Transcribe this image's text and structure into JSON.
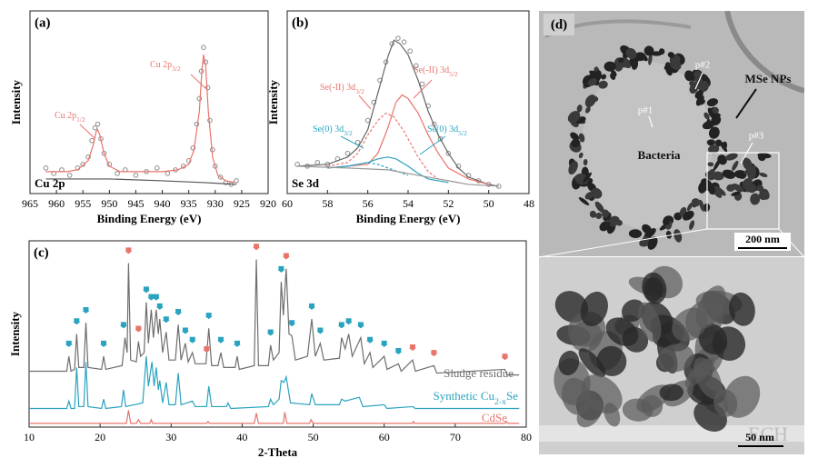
{
  "chart_data": [
    {
      "type": "line",
      "panel_label": "(a)",
      "corner_label": "Cu 2p",
      "xlabel": "Binding Energy (eV)",
      "ylabel": "Intensity",
      "xlim": [
        965,
        920
      ],
      "xticks": [
        965,
        960,
        955,
        950,
        945,
        940,
        935,
        930,
        925,
        920
      ],
      "ylim": [
        0,
        100
      ],
      "series": [
        {
          "style": "scatter",
          "color": "#8c8c8c",
          "x": [
            962,
            960.5,
            959,
            957.5,
            956,
            955,
            954,
            953.3,
            952.7,
            952.2,
            951.6,
            951,
            950,
            948.5,
            947,
            945,
            943,
            941,
            939,
            937.5,
            936,
            935,
            934.2,
            933.5,
            933,
            932.6,
            932.2,
            931.8,
            931.4,
            931,
            930.5,
            930,
            929,
            928,
            927,
            926
          ],
          "values": [
            14,
            11,
            13,
            10,
            14,
            16,
            20,
            29,
            36,
            38,
            30,
            22,
            16,
            11,
            13,
            10,
            12,
            14,
            11,
            13,
            15,
            18,
            25,
            38,
            52,
            67,
            80,
            72,
            58,
            40,
            24,
            15,
            9,
            6,
            5,
            7
          ]
        },
        {
          "style": "line",
          "color": "#e8746c",
          "x": [
            962,
            958,
            956,
            954,
            953,
            952.5,
            952.2,
            951.8,
            951,
            950,
            948,
            944,
            940,
            937,
            935,
            934,
            933,
            932.5,
            932.2,
            931.8,
            931.3,
            930.5,
            929.5,
            928,
            926
          ],
          "values": [
            12,
            12,
            13,
            18,
            27,
            34,
            35,
            32,
            22,
            15,
            12,
            12,
            12,
            13,
            16,
            24,
            45,
            68,
            76,
            70,
            45,
            20,
            10,
            7,
            6
          ]
        },
        {
          "style": "line",
          "color": "#555555",
          "x": [
            962,
            950,
            940,
            932,
            926
          ],
          "values": [
            8,
            8,
            7,
            6,
            5
          ]
        }
      ],
      "annotations": [
        {
          "parts": [
            "Cu 2p",
            "1/2"
          ],
          "color": "#e8746c"
        },
        {
          "parts": [
            "Cu 2p",
            "3/2"
          ],
          "color": "#e8746c"
        }
      ]
    },
    {
      "type": "line",
      "panel_label": "(b)",
      "corner_label": "Se 3d",
      "xlabel": "Binding Energy (eV)",
      "ylabel": "Intensity",
      "xlim": [
        60,
        48
      ],
      "xticks": [
        60,
        58,
        56,
        54,
        52,
        50,
        48
      ],
      "ylim": [
        0,
        100
      ],
      "series": [
        {
          "style": "scatter",
          "color": "#8c8c8c",
          "x": [
            59.5,
            59,
            58.5,
            58,
            57.5,
            57,
            56.5,
            56,
            55.7,
            55.4,
            55.1,
            54.8,
            54.5,
            54.2,
            53.9,
            53.6,
            53.3,
            53,
            52.7,
            52.4,
            52,
            51.5,
            51,
            50.5,
            50,
            49.5
          ],
          "values": [
            16,
            15,
            17,
            16,
            19,
            22,
            28,
            40,
            50,
            62,
            72,
            82,
            85,
            83,
            78,
            70,
            60,
            48,
            38,
            30,
            22,
            15,
            10,
            7,
            5,
            4
          ]
        },
        {
          "style": "line",
          "color": "#666666",
          "x": [
            59.5,
            58,
            57,
            56.5,
            56,
            55.5,
            55,
            54.7,
            54.4,
            54,
            53.5,
            53,
            52.5,
            52,
            51.5,
            51,
            50,
            49.5
          ],
          "values": [
            15,
            16,
            20,
            25,
            35,
            55,
            75,
            84,
            82,
            76,
            62,
            45,
            32,
            22,
            14,
            9,
            5,
            4
          ]
        },
        {
          "style": "line",
          "color": "#e8746c",
          "x": [
            58,
            56,
            55.5,
            55,
            54.6,
            54.3,
            54,
            53.5,
            53,
            52.5,
            52,
            51,
            50
          ],
          "values": [
            14,
            16,
            22,
            36,
            50,
            54,
            52,
            44,
            32,
            22,
            14,
            8,
            5
          ]
        },
        {
          "style": "dashed",
          "color": "#e8746c",
          "x": [
            58,
            57,
            56.5,
            56,
            55.5,
            55.1,
            54.7,
            54.2,
            53.5,
            53,
            52.5,
            51.5
          ],
          "values": [
            15,
            17,
            22,
            32,
            40,
            44,
            42,
            34,
            20,
            12,
            8,
            6
          ]
        },
        {
          "style": "line",
          "color": "#2aa3bf",
          "x": [
            58,
            57,
            56,
            55.5,
            55,
            54.6,
            54,
            53.5,
            53,
            52
          ],
          "values": [
            14,
            15,
            17,
            19,
            20,
            19,
            15,
            11,
            8,
            6
          ]
        },
        {
          "style": "dashed",
          "color": "#2aa3bf",
          "x": [
            58,
            57,
            56.5,
            56,
            55.5,
            55,
            54.5,
            54
          ],
          "values": [
            14,
            15,
            16,
            17,
            16,
            14,
            12,
            10
          ]
        },
        {
          "style": "line",
          "color": "#999999",
          "x": [
            59.5,
            57,
            55,
            53,
            51,
            49.5
          ],
          "values": [
            15,
            14,
            13,
            9,
            5,
            4
          ]
        }
      ],
      "annotations": [
        {
          "parts": [
            "Se(-II) 3d",
            "3/2"
          ],
          "color": "#e8746c"
        },
        {
          "parts": [
            "Se(-II) 3d",
            "5/2"
          ],
          "color": "#e8746c"
        },
        {
          "parts": [
            "Se(0) 3d",
            "3/2"
          ],
          "color": "#2aa3bf"
        },
        {
          "parts": [
            "Se(0) 3d",
            "5/2"
          ],
          "color": "#2aa3bf"
        }
      ]
    },
    {
      "type": "line",
      "panel_label": "(c)",
      "xlabel": "2-Theta",
      "ylabel": "Intensity",
      "xlim": [
        10,
        80
      ],
      "xticks": [
        10,
        20,
        30,
        40,
        50,
        60,
        70,
        80
      ],
      "ylim": [
        0,
        100
      ],
      "series": [
        {
          "style": "line",
          "color": "#6e6e6e",
          "x": [
            10,
            15.3,
            15.6,
            15.9,
            16.4,
            16.7,
            17,
            17.7,
            18,
            18.3,
            20.2,
            20.5,
            20.8,
            23.1,
            23.5,
            23.8,
            24,
            24.3,
            25.1,
            25.4,
            25.7,
            26.2,
            26.5,
            26.8,
            27.2,
            27.5,
            27.9,
            28.2,
            28.4,
            28.8,
            29.3,
            29.7,
            30.6,
            31,
            31.4,
            32,
            32.4,
            33,
            33.4,
            34.9,
            35.3,
            35.7,
            36.6,
            37,
            37.4,
            39,
            39.3,
            39.6,
            41.7,
            42,
            42.3,
            43.7,
            44,
            44.4,
            45.2,
            45.5,
            45.8,
            46.2,
            46.6,
            47,
            47.5,
            49.2,
            49.8,
            50.3,
            51,
            51.5,
            53.7,
            54,
            54.5,
            55,
            55.5,
            56.7,
            57.2,
            58,
            58.4,
            60,
            60.4,
            62,
            62.4,
            64,
            64.4,
            67,
            67.4,
            77,
            77.3,
            79
          ],
          "values": [
            30,
            30,
            38,
            30,
            31,
            50,
            32,
            32,
            56,
            32,
            31,
            38,
            31,
            33,
            48,
            40,
            88,
            36,
            35,
            46,
            38,
            40,
            67,
            45,
            63,
            48,
            63,
            50,
            58,
            40,
            51,
            36,
            36,
            55,
            36,
            45,
            35,
            40,
            34,
            34,
            53,
            33,
            33,
            40,
            32,
            32,
            38,
            31,
            33,
            90,
            33,
            33,
            44,
            36,
            40,
            78,
            60,
            85,
            50,
            49,
            36,
            38,
            58,
            38,
            45,
            36,
            37,
            48,
            42,
            50,
            38,
            48,
            34,
            40,
            32,
            38,
            31,
            34,
            30,
            36,
            30,
            33,
            29,
            31,
            28,
            28
          ]
        },
        {
          "style": "line",
          "color": "#2aa3bf",
          "x": [
            10,
            15.3,
            15.6,
            15.9,
            16.4,
            16.7,
            17,
            17.7,
            18,
            18.3,
            20.2,
            20.5,
            20.8,
            23,
            23.3,
            23.6,
            26,
            26.5,
            26.8,
            27.3,
            27.6,
            27.9,
            28.2,
            28.4,
            28.8,
            29.3,
            29.7,
            30.6,
            31,
            31.4,
            33,
            33.4,
            35,
            35.3,
            35.7,
            37.8,
            38,
            38.4,
            43.7,
            44,
            44.4,
            45.2,
            45.5,
            45.9,
            46.2,
            46.8,
            49.5,
            49.8,
            50.3,
            53.7,
            54,
            54.5,
            56.5,
            57,
            60,
            60.4,
            64,
            64.4,
            79
          ],
          "values": [
            10,
            10,
            14,
            10,
            10,
            32,
            11,
            11,
            35,
            11,
            10,
            15,
            10,
            11,
            20,
            11,
            13,
            38,
            22,
            35,
            22,
            32,
            20,
            25,
            13,
            24,
            12,
            12,
            29,
            12,
            14,
            11,
            11,
            22,
            11,
            11,
            13,
            10,
            11,
            15,
            12,
            15,
            25,
            24,
            27,
            13,
            12,
            18,
            12,
            12,
            15,
            14,
            16,
            11,
            12,
            10,
            11,
            10,
            10
          ]
        },
        {
          "style": "line",
          "color": "#e8746c",
          "x": [
            10,
            23.7,
            24,
            24.3,
            25.1,
            25.4,
            25.7,
            27,
            27.2,
            27.4,
            35,
            35.2,
            35.4,
            41.7,
            42,
            42.3,
            45.8,
            46,
            46.3,
            49.5,
            49.7,
            50,
            64,
            64.1,
            64.3,
            77,
            77.2,
            77.4,
            79
          ],
          "values": [
            2,
            2,
            9,
            2,
            2,
            4,
            2,
            2,
            4,
            2,
            2,
            3,
            2,
            2,
            7.5,
            2,
            2,
            8,
            2,
            2,
            4,
            2,
            2,
            3,
            2,
            2,
            3,
            2,
            2
          ]
        }
      ],
      "markers": [
        {
          "color": "#2aa3bf",
          "x": [
            15.6,
            16.7,
            18,
            20.5,
            23.3,
            26.5,
            27.2,
            27.9,
            28.4,
            29.3,
            31,
            32,
            33,
            35.3,
            37,
            39.3,
            44,
            45.5,
            47,
            49.8,
            51,
            54,
            55,
            56.7,
            58,
            60,
            62
          ],
          "values": [
            43,
            55,
            61,
            43,
            53,
            72,
            68,
            68,
            63,
            56,
            60,
            50,
            45,
            58,
            45,
            43,
            49,
            83,
            54,
            63,
            50,
            53,
            55,
            53,
            45,
            43,
            39
          ]
        },
        {
          "color": "#e8746c",
          "x": [
            24,
            25.4,
            35,
            42,
            46.2,
            64,
            67,
            77
          ],
          "values": [
            93,
            51,
            40,
            95,
            90,
            41,
            38,
            36
          ]
        }
      ],
      "annotations": [
        {
          "parts": [
            "Sludge residue"
          ],
          "color": "#6e6e6e"
        },
        {
          "parts": [
            "Synthetic Cu",
            "2-x",
            "Se"
          ],
          "color": "#2aa3bf"
        },
        {
          "parts": [
            "CdSe"
          ],
          "color": "#e8746c"
        }
      ]
    }
  ],
  "image_panel": {
    "panel_label": "(d)",
    "labels": [
      "p#1",
      "p#2",
      "p#3",
      "MSe NPs",
      "Bacteria"
    ],
    "scale_bars": [
      "200 nm",
      "50 nm"
    ],
    "watermark": "ECH"
  }
}
